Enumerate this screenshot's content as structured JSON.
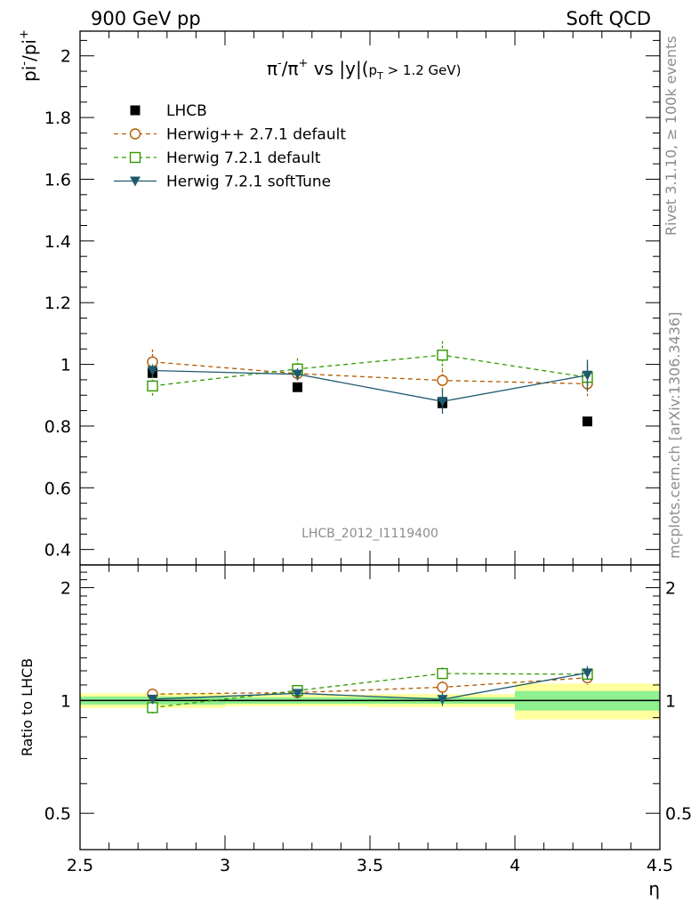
{
  "header": {
    "left": "900 GeV pp",
    "right": "Soft QCD"
  },
  "side_labels": {
    "rivet": "Rivet 3.1.10, ≥ 100k events",
    "mcplots": "mcplots.cern.ch [arXiv:1306.3436]"
  },
  "chart_data": {
    "type": "scatter",
    "title_parts": {
      "pi": "π",
      "minus": "-",
      "slash": "/π",
      "plus": "+",
      "vs": " vs |y|(",
      "pt": "p",
      "ptsub": "T",
      "cut": " > 1.2 GeV)"
    },
    "analysis_id": "LHCB_2012_I1119400",
    "ylabel_parts": {
      "base1": "pi",
      "sup1": "-",
      "base2": "/pi",
      "sup2": "+"
    },
    "ratio_ylabel": "Ratio to LHCB",
    "xlabel": "η",
    "xlim": [
      2.5,
      4.5
    ],
    "ylim_main": [
      0.35,
      2.08
    ],
    "ylim_ratio_log": [
      0.4,
      2.3
    ],
    "x_ticks": [
      2.5,
      3,
      3.5,
      4,
      4.5
    ],
    "x_tick_labels": [
      "2.5",
      "3",
      "3.5",
      "4",
      "4.5"
    ],
    "y_ticks_main": [
      0.4,
      0.6,
      0.8,
      1,
      1.2,
      1.4,
      1.6,
      1.8,
      2
    ],
    "y_tick_labels_main": [
      "0.4",
      "0.6",
      "0.8",
      "1",
      "1.2",
      "1.4",
      "1.6",
      "1.8",
      "2"
    ],
    "y_ticks_ratio": [
      0.5,
      1,
      2
    ],
    "y_tick_labels_ratio": [
      "0.5",
      "1",
      "2"
    ],
    "x": [
      2.75,
      3.25,
      3.75,
      4.25
    ],
    "bin_edges": [
      2.5,
      3.0,
      3.5,
      4.0,
      4.5
    ],
    "series": [
      {
        "name": "LHCB",
        "color": "#000000",
        "marker": "filled-square",
        "line": "none",
        "values": [
          0.972,
          0.926,
          0.874,
          0.815
        ],
        "errors": [
          0.0,
          0.0,
          0.0,
          0.0
        ],
        "ratio": [
          1.0,
          1.0,
          1.0,
          1.0
        ],
        "ratio_errors": [
          0.0,
          0.0,
          0.0,
          0.0
        ]
      },
      {
        "name": "Herwig++ 2.7.1 default",
        "color": "#b35900",
        "marker": "open-circle",
        "line": "dashed",
        "values": [
          1.008,
          0.97,
          0.948,
          0.937
        ],
        "errors": [
          0.04,
          0.03,
          0.035,
          0.04
        ],
        "ratio": [
          1.04,
          1.05,
          1.085,
          1.15
        ],
        "ratio_errors": [
          0.035,
          0.03,
          0.04,
          0.05
        ]
      },
      {
        "name": "Herwig 7.2.1 default",
        "color": "#339900",
        "marker": "open-square",
        "line": "dashed",
        "values": [
          0.93,
          0.985,
          1.03,
          0.958
        ],
        "errors": [
          0.035,
          0.035,
          0.045,
          0.04
        ],
        "ratio": [
          0.957,
          1.063,
          1.18,
          1.175
        ],
        "ratio_errors": [
          0.035,
          0.035,
          0.045,
          0.045
        ]
      },
      {
        "name": "Herwig 7.2.1 softTune",
        "color": "#1e5a6e",
        "marker": "filled-triangle-down",
        "line": "solid",
        "values": [
          0.98,
          0.968,
          0.88,
          0.965
        ],
        "errors": [
          0.02,
          0.02,
          0.04,
          0.05
        ],
        "ratio": [
          1.008,
          1.045,
          1.007,
          1.185
        ],
        "ratio_errors": [
          0.02,
          0.02,
          0.04,
          0.05
        ]
      }
    ],
    "ratio_bands": {
      "inner_color": "#8ff08f",
      "outer_color": "#ffff9e",
      "inner_halfwidth": [
        0.025,
        0.02,
        0.02,
        0.06
      ],
      "outer_halfwidth": [
        0.045,
        0.035,
        0.04,
        0.11
      ]
    },
    "legend_placement": "top-left",
    "grid": false
  }
}
